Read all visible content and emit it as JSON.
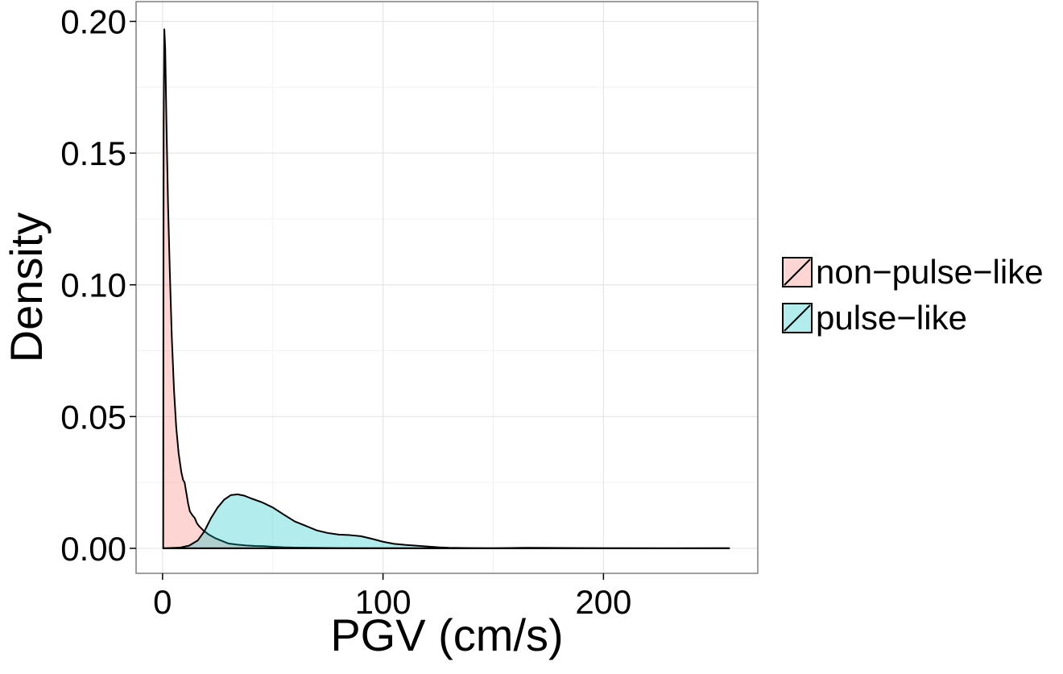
{
  "chart_data": {
    "type": "area",
    "title": "",
    "xlabel": "PGV (cm/s)",
    "ylabel": "Density",
    "xlim": [
      -12,
      270
    ],
    "ylim": [
      -0.0095,
      0.2075
    ],
    "x_ticks": [
      0,
      100,
      200
    ],
    "x_tick_labels": [
      "0",
      "100",
      "200"
    ],
    "y_ticks": [
      0.0,
      0.05,
      0.1,
      0.15,
      0.2
    ],
    "y_tick_labels": [
      "0.00",
      "0.05",
      "0.10",
      "0.15",
      "0.20"
    ],
    "grid": true,
    "legend_position": "right",
    "series": [
      {
        "name": "non-pulse-like",
        "color": "#F8766D",
        "fill_opacity": 0.3,
        "points": [
          [
            0.3,
            0
          ],
          [
            0.5,
            0.16
          ],
          [
            0.8,
            0.197
          ],
          [
            1.2,
            0.19
          ],
          [
            1.8,
            0.16
          ],
          [
            2.5,
            0.13
          ],
          [
            3.3,
            0.105
          ],
          [
            4.2,
            0.08
          ],
          [
            5.2,
            0.06
          ],
          [
            6.2,
            0.046
          ],
          [
            7.3,
            0.036
          ],
          [
            8.5,
            0.029
          ],
          [
            9.3,
            0.026
          ],
          [
            10,
            0.025
          ],
          [
            10.8,
            0.021
          ],
          [
            11.6,
            0.017
          ],
          [
            12.4,
            0.014
          ],
          [
            13.6,
            0.0125
          ],
          [
            14.6,
            0.0115
          ],
          [
            15.6,
            0.0095
          ],
          [
            16.8,
            0.0082
          ],
          [
            18.5,
            0.0068
          ],
          [
            21,
            0.0052
          ],
          [
            24,
            0.0038
          ],
          [
            27,
            0.0028
          ],
          [
            30,
            0.0018
          ],
          [
            34,
            0.0014
          ],
          [
            38,
            0.0011
          ],
          [
            42,
            0.0009
          ],
          [
            46,
            0.0008
          ],
          [
            50,
            0.0006
          ],
          [
            55,
            0.0004
          ],
          [
            60,
            0.0003
          ],
          [
            70,
            0.0002
          ],
          [
            80,
            0.0001
          ],
          [
            100,
            5e-05
          ],
          [
            130,
            2e-05
          ],
          [
            160,
            3e-05
          ],
          [
            200,
            1e-05
          ],
          [
            257,
            0
          ]
        ]
      },
      {
        "name": "pulse-like",
        "color": "#00BFC4",
        "fill_opacity": 0.3,
        "points": [
          [
            0.3,
            0
          ],
          [
            8,
            0.0003
          ],
          [
            12,
            0.001
          ],
          [
            16,
            0.003
          ],
          [
            19,
            0.0065
          ],
          [
            22,
            0.0115
          ],
          [
            25,
            0.0155
          ],
          [
            28,
            0.0185
          ],
          [
            31,
            0.0202
          ],
          [
            34,
            0.0205
          ],
          [
            37,
            0.02
          ],
          [
            40,
            0.019
          ],
          [
            45,
            0.0175
          ],
          [
            50,
            0.0155
          ],
          [
            55,
            0.0128
          ],
          [
            60,
            0.0102
          ],
          [
            65,
            0.0085
          ],
          [
            70,
            0.0068
          ],
          [
            75,
            0.0058
          ],
          [
            80,
            0.0052
          ],
          [
            85,
            0.005
          ],
          [
            90,
            0.0046
          ],
          [
            95,
            0.0036
          ],
          [
            100,
            0.0025
          ],
          [
            105,
            0.0017
          ],
          [
            110,
            0.0013
          ],
          [
            115,
            0.001
          ],
          [
            120,
            0.0007
          ],
          [
            125,
            0.0004
          ],
          [
            130,
            0.0002
          ],
          [
            140,
            0.0001
          ],
          [
            150,
            5e-05
          ],
          [
            165,
            0.0002
          ],
          [
            175,
            0.00015
          ],
          [
            200,
            5e-05
          ],
          [
            230,
            2e-05
          ],
          [
            257,
            5e-05
          ]
        ]
      }
    ]
  }
}
